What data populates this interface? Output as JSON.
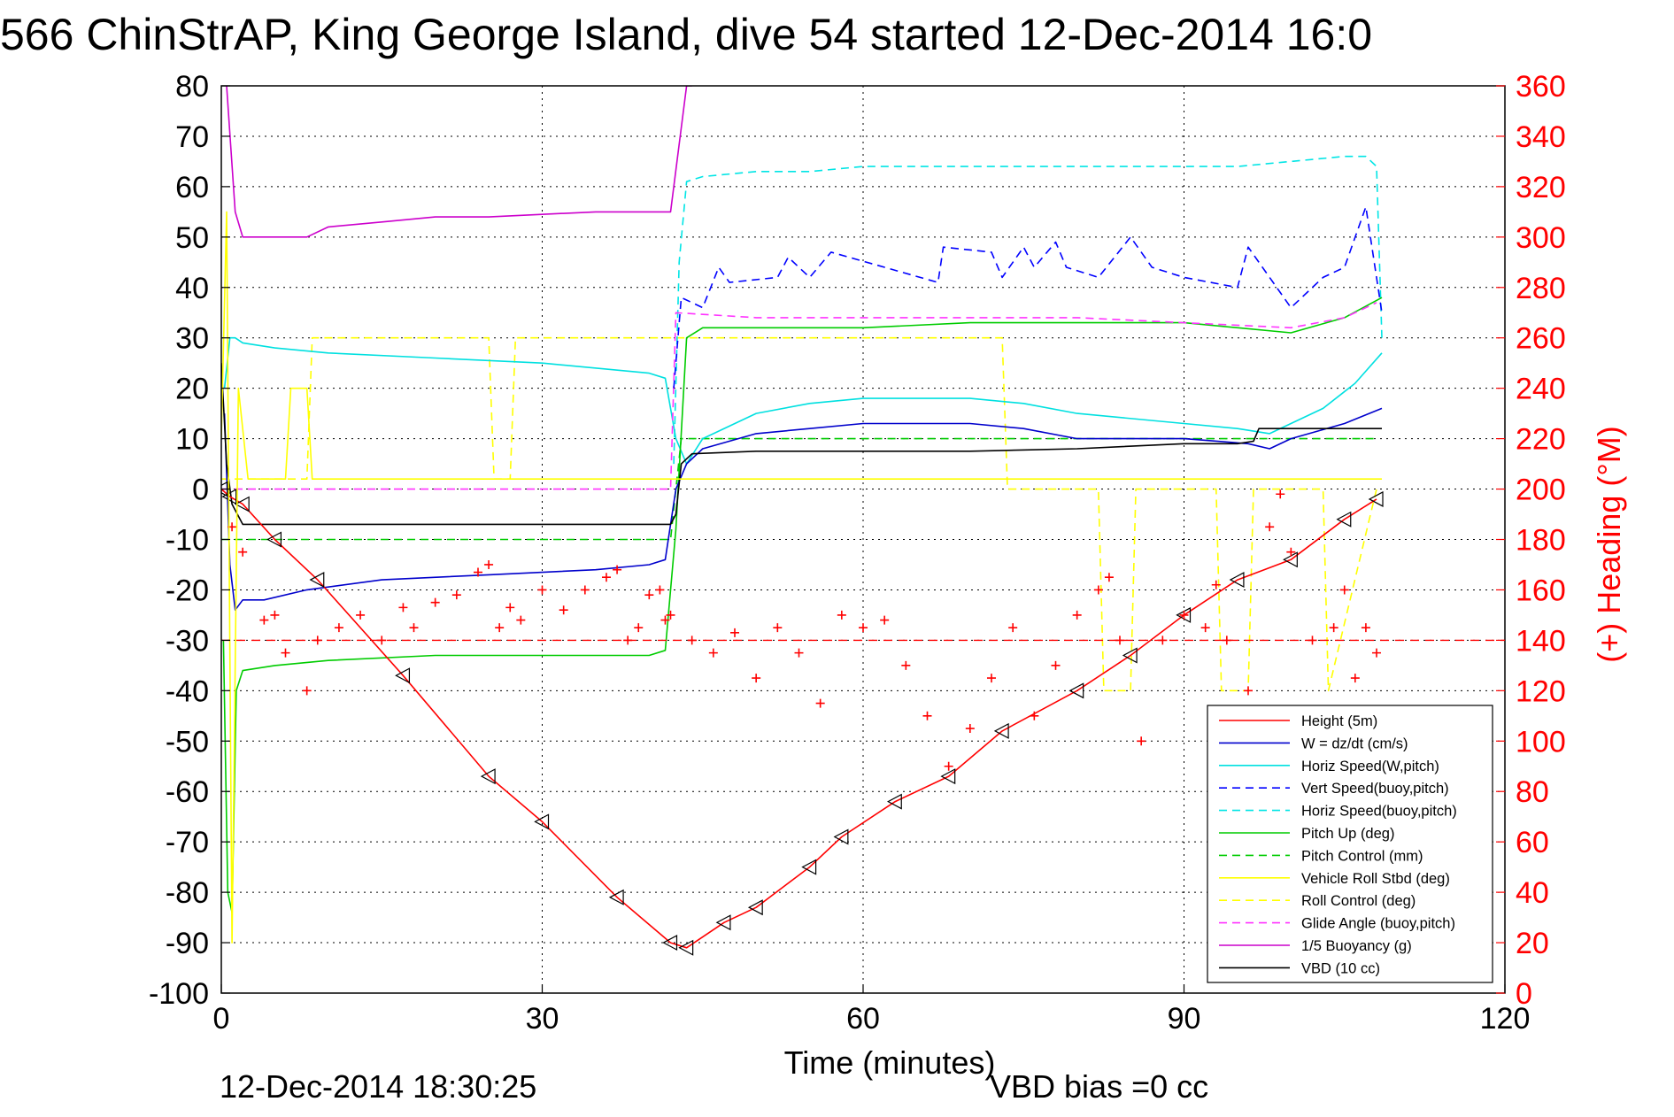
{
  "chart_data": {
    "type": "line",
    "title": "566 ChinStrAP, King George Island, dive 54 started 12-Dec-2014 16:0",
    "xlabel": "Time (minutes)",
    "ylabel": "",
    "y2label": "(+) Heading (°M)",
    "xlim": [
      0,
      120
    ],
    "ylim": [
      -100,
      80
    ],
    "y2lim": [
      0,
      360
    ],
    "xticks": [
      "0",
      "30",
      "60",
      "90",
      "120"
    ],
    "yticks": [
      "80",
      "70",
      "60",
      "50",
      "40",
      "30",
      "20",
      "10",
      "0",
      "-10",
      "-20",
      "-30",
      "-40",
      "-50",
      "-60",
      "-70",
      "-80",
      "-90",
      "-100"
    ],
    "y2ticks": [
      "360",
      "340",
      "320",
      "300",
      "280",
      "260",
      "240",
      "220",
      "200",
      "180",
      "160",
      "140",
      "120",
      "100",
      "80",
      "60",
      "40",
      "20",
      "0"
    ],
    "grid": true,
    "legend_position": "lower-right",
    "footer_left": "12-Dec-2014 18:30:25",
    "footer_right": "VBD bias =0 cc",
    "colors": {
      "heading_axis": "#ff0000"
    },
    "series": [
      {
        "name": "Height (5m)",
        "color": "#ff0000",
        "style": "solid",
        "x": [
          0,
          0.8,
          2,
          5,
          9,
          17,
          25,
          30,
          37,
          42,
          43.5,
          47,
          50,
          55,
          58,
          63,
          68,
          73,
          80,
          85,
          90,
          95,
          100,
          105,
          108
        ],
        "y": [
          0,
          -1.5,
          -3,
          -10,
          -18,
          -37,
          -57,
          -66,
          -81,
          -90,
          -91,
          -86,
          -83,
          -75,
          -69,
          -62,
          -57,
          -48,
          -40,
          -33,
          -25,
          -18,
          -14,
          -6,
          -2
        ]
      },
      {
        "name": "W = dz/dt (cm/s)",
        "color": "#0000cc",
        "style": "solid",
        "x": [
          0.3,
          0.8,
          1.3,
          2,
          4,
          8,
          15,
          25,
          35,
          40,
          41.5,
          42.5,
          43.5,
          45,
          50,
          55,
          60,
          70,
          75,
          80,
          90,
          96,
          98,
          100,
          105,
          108.5
        ],
        "y": [
          15,
          -15,
          -24,
          -22,
          -22,
          -20,
          -18,
          -17,
          -16,
          -15,
          -14,
          0,
          5,
          8,
          11,
          12,
          13,
          13,
          12,
          10,
          10,
          9,
          8,
          10,
          13,
          16
        ]
      },
      {
        "name": "Horiz Speed(W,pitch)",
        "color": "#00e0e0",
        "style": "solid",
        "x": [
          0.3,
          0.8,
          1.3,
          2,
          5,
          10,
          20,
          30,
          40,
          41.5,
          42.5,
          43.5,
          45,
          50,
          55,
          60,
          65,
          70,
          75,
          80,
          90,
          95,
          98,
          103,
          106,
          108.5
        ],
        "y": [
          20,
          30,
          30,
          29,
          28,
          27,
          26,
          25,
          23,
          22,
          10,
          5,
          10,
          15,
          17,
          18,
          18,
          18,
          17,
          15,
          13,
          12,
          11,
          16,
          21,
          27
        ]
      },
      {
        "name": "Vert Speed(buoy,pitch)",
        "color": "#0000ff",
        "style": "dashed",
        "x": [
          42.3,
          43,
          45,
          46.5,
          47.5,
          52,
          53,
          55,
          57,
          67,
          67.5,
          72,
          73,
          75,
          76,
          78,
          79,
          82,
          85,
          87,
          90,
          95,
          96,
          100,
          103,
          105,
          107,
          108.5
        ],
        "y": [
          20,
          38,
          36,
          44,
          41,
          42,
          46,
          42,
          47,
          41,
          48,
          47,
          42,
          48,
          44,
          49,
          44,
          42,
          50,
          44,
          42,
          40,
          48,
          36,
          42,
          44,
          56,
          35
        ]
      },
      {
        "name": "Horiz Speed(buoy,pitch)",
        "color": "#00e5e5",
        "style": "dashed",
        "x": [
          42.3,
          42.8,
          43.5,
          45,
          50,
          55,
          60,
          65,
          70,
          75,
          80,
          85,
          90,
          95,
          100,
          105,
          107,
          108,
          108.5
        ],
        "y": [
          5,
          45,
          61,
          62,
          63,
          63,
          64,
          64,
          64,
          64,
          64,
          64,
          64,
          64,
          65,
          66,
          66,
          64,
          30
        ]
      },
      {
        "name": "Pitch Up (deg)",
        "color": "#00cc00",
        "style": "solid",
        "x": [
          0.2,
          0.6,
          1,
          1.4,
          2,
          5,
          10,
          20,
          30,
          40,
          41.5,
          42.5,
          43.5,
          45,
          50,
          60,
          70,
          80,
          90,
          100,
          105,
          108.5
        ],
        "y": [
          -30,
          -80,
          -84,
          -40,
          -36,
          -35,
          -34,
          -33,
          -33,
          -33,
          -32,
          -8,
          30,
          32,
          32,
          32,
          33,
          33,
          33,
          31,
          34,
          38
        ]
      },
      {
        "name": "Pitch Control (mm)",
        "color": "#00cc00",
        "style": "dashed",
        "x": [
          0,
          1.5,
          42,
          43,
          108
        ],
        "y": [
          -10,
          -10,
          -10,
          10,
          10
        ]
      },
      {
        "name": "Vehicle Roll Stbd (deg)",
        "color": "#ffff00",
        "style": "solid",
        "x": [
          0,
          0.5,
          1,
          1.6,
          2.5,
          6,
          6.5,
          8,
          8.5,
          10,
          20,
          30,
          40,
          42,
          43,
          45,
          50,
          60,
          70,
          80,
          90,
          100,
          105,
          108.5
        ],
        "y": [
          10,
          55,
          -90,
          20,
          2,
          2,
          20,
          20,
          2,
          2,
          2,
          2,
          2,
          2,
          2,
          2,
          2,
          2,
          2,
          2,
          2,
          2,
          2,
          2
        ]
      },
      {
        "name": "Roll Control (deg)",
        "color": "#ffff00",
        "style": "dashed",
        "x": [
          0,
          8,
          8.5,
          25,
          25.5,
          27,
          27.5,
          40,
          43,
          43.5,
          60,
          60.5,
          73,
          73.5,
          82,
          82.5,
          85,
          85.5,
          93,
          93.5,
          96,
          96.5,
          103,
          103.5,
          108
        ],
        "y": [
          2,
          2,
          30,
          30,
          2,
          2,
          30,
          30,
          30,
          30,
          30,
          30,
          30,
          0,
          0,
          -40,
          -40,
          0,
          0,
          -40,
          -40,
          0,
          0,
          -40,
          0
        ]
      },
      {
        "name": "Glide Angle (buoy,pitch)",
        "color": "#ff33ff",
        "style": "dashed",
        "x": [
          0,
          42,
          42.5,
          50,
          60,
          70,
          80,
          90,
          100,
          105,
          108
        ],
        "y": [
          0,
          0,
          35,
          34,
          34,
          34,
          34,
          33,
          32,
          34,
          37
        ]
      },
      {
        "name": "1/5 Buoyancy (g)",
        "color": "#cc00cc",
        "style": "solid",
        "x": [
          0.5,
          1.3,
          2,
          6,
          8,
          10,
          15,
          20,
          25,
          30,
          35,
          40,
          42,
          43.5,
          44
        ],
        "y": [
          80,
          55,
          50,
          50,
          50,
          52,
          53,
          54,
          54,
          54.5,
          55,
          55,
          55,
          80,
          80
        ]
      },
      {
        "name": "VBD (10 cc)",
        "color": "#000000",
        "style": "solid",
        "x": [
          0,
          0.5,
          1,
          2,
          42,
          42.5,
          43,
          44,
          50,
          60,
          70,
          80,
          90,
          95,
          96.5,
          97,
          108.5
        ],
        "y": [
          25,
          5,
          -3,
          -7,
          -7,
          -5,
          5,
          7,
          7.5,
          7.5,
          7.5,
          8,
          9,
          9,
          9.5,
          12,
          12
        ]
      },
      {
        "name": "",
        "color": "#ff0000",
        "style": "marker",
        "axis": "y2",
        "x": [
          1,
          2,
          4,
          5,
          6,
          8,
          9,
          11,
          13,
          15,
          17,
          18,
          20,
          22,
          24,
          25,
          26,
          27,
          28,
          30,
          32,
          34,
          36,
          37,
          38,
          39,
          40,
          41,
          41.5,
          42,
          44,
          46,
          48,
          50,
          52,
          54,
          56,
          58,
          60,
          62,
          64,
          66,
          68,
          70,
          72,
          74,
          76,
          78,
          80,
          82,
          83,
          84,
          86,
          88,
          90,
          92,
          93,
          94,
          96,
          98,
          99,
          100,
          102,
          104,
          105,
          106,
          107,
          108
        ],
        "y": [
          185,
          175,
          148,
          150,
          135,
          120,
          140,
          145,
          150,
          140,
          153,
          145,
          155,
          158,
          167,
          170,
          145,
          153,
          148,
          160,
          152,
          160,
          165,
          168,
          140,
          145,
          158,
          160,
          148,
          150,
          140,
          135,
          143,
          125,
          145,
          135,
          115,
          150,
          145,
          148,
          130,
          110,
          90,
          105,
          125,
          145,
          110,
          130,
          150,
          160,
          165,
          140,
          100,
          140,
          150,
          145,
          162,
          140,
          120,
          185,
          198,
          175,
          140,
          145,
          160,
          125,
          145,
          135
        ]
      }
    ]
  }
}
